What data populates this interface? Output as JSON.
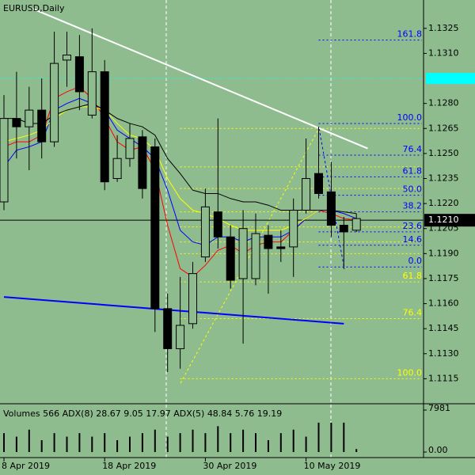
{
  "chart_data": {
    "type": "candlestick",
    "title": "EURUSD,Daily",
    "categories": [
      "8 Apr 2019",
      null,
      null,
      null,
      null,
      null,
      null,
      null,
      "18 Apr 2019",
      null,
      null,
      null,
      null,
      null,
      null,
      null,
      "30 Apr 2019",
      null,
      null,
      null,
      null,
      null,
      null,
      null,
      "10 May 2019",
      null,
      null,
      null,
      null
    ],
    "open": [
      1.1221,
      1.1271,
      1.1266,
      1.1276,
      1.1257,
      1.1306,
      1.1308,
      1.1273,
      1.1299,
      1.1235,
      1.1247,
      1.126,
      1.1254,
      1.1157,
      1.1133,
      1.1148,
      1.1188,
      1.1215,
      1.12,
      1.1175,
      1.1175,
      1.1201,
      1.1194,
      1.1194,
      1.1216,
      1.1238,
      1.1227,
      1.1207,
      1.1204
    ],
    "high": [
      1.1285,
      1.1299,
      1.129,
      1.1295,
      1.1323,
      1.1323,
      1.1321,
      1.1325,
      1.1306,
      1.1261,
      1.1268,
      1.1264,
      1.1259,
      1.1166,
      1.1176,
      1.1185,
      1.1229,
      1.1271,
      1.1207,
      1.1216,
      1.1214,
      1.1207,
      1.1204,
      1.1223,
      1.1259,
      1.1266,
      1.1245,
      1.1212,
      1.1214
    ],
    "low": [
      1.1216,
      1.1247,
      1.124,
      1.1247,
      1.1254,
      1.129,
      1.1276,
      1.1271,
      1.1228,
      1.1233,
      1.1242,
      1.1223,
      1.1143,
      1.1119,
      1.1121,
      1.1145,
      1.1185,
      1.1193,
      1.1169,
      1.1136,
      1.1171,
      1.1166,
      1.1185,
      1.1176,
      1.1214,
      1.1223,
      1.12,
      1.1181,
      1.1203
    ],
    "close": [
      1.1271,
      1.1266,
      1.1276,
      1.1257,
      1.1304,
      1.1309,
      1.1287,
      1.1299,
      1.1233,
      1.1247,
      1.1259,
      1.1229,
      1.1157,
      1.1133,
      1.1147,
      1.1178,
      1.1218,
      1.12,
      1.1174,
      1.1205,
      1.1202,
      1.1193,
      1.1193,
      1.1216,
      1.1235,
      1.1226,
      1.1207,
      1.1203,
      1.1211
    ],
    "series": [
      {
        "color": "#ff0000",
        "values": [
          1.1254,
          1.1257,
          1.1257,
          1.1261,
          1.1283,
          1.1287,
          1.129,
          1.1283,
          1.1271,
          1.1257,
          1.1252,
          1.1254,
          1.124,
          1.1207,
          1.1181,
          1.1176,
          1.1183,
          1.1192,
          1.1195,
          1.119,
          1.1195,
          1.1197,
          1.1197,
          1.1204,
          1.1211,
          1.1216,
          1.1214,
          1.1211,
          1.121
        ]
      },
      {
        "color": "#0000ff",
        "values": [
          1.1242,
          1.1252,
          1.1254,
          1.1257,
          1.1276,
          1.128,
          1.1283,
          1.128,
          1.1276,
          1.1264,
          1.1259,
          1.1254,
          1.1247,
          1.1228,
          1.1204,
          1.1197,
          1.1195,
          1.12,
          1.12,
          1.1197,
          1.12,
          1.12,
          1.12,
          1.1204,
          1.1211,
          1.1216,
          1.1216,
          1.1214,
          1.1211
        ]
      },
      {
        "color": "#ffff00",
        "values": [
          1.1257,
          1.1259,
          1.1261,
          1.1264,
          1.1271,
          1.1276,
          1.1278,
          1.1278,
          1.1276,
          1.1268,
          1.1261,
          1.1259,
          1.1252,
          1.1235,
          1.1223,
          1.1216,
          1.1214,
          1.1211,
          1.1207,
          1.1204,
          1.1204,
          1.1204,
          1.1204,
          1.1207,
          1.1211,
          1.1216,
          1.1216,
          1.1215,
          1.1214
        ]
      },
      {
        "color": "#000000",
        "values": [
          1.1271,
          1.1271,
          1.1268,
          1.1268,
          1.1273,
          1.1276,
          1.1278,
          1.128,
          1.1276,
          1.1271,
          1.1268,
          1.1266,
          1.1261,
          1.1247,
          1.1238,
          1.1228,
          1.1226,
          1.1226,
          1.1223,
          1.1221,
          1.1221,
          1.1219,
          1.1216,
          1.1216,
          1.1216,
          1.1216,
          1.1216,
          1.1215,
          1.1214
        ]
      }
    ],
    "ylim": [
      1.11,
      1.1342
    ],
    "yticks": [
      1.1325,
      {
        "value": 1.131,
        "label": "1.1310"
      },
      {
        "value": 1.128,
        "label": "1.1280"
      },
      1.1265,
      {
        "value": 1.125,
        "label": "1.1250"
      },
      1.1235,
      {
        "value": 1.122,
        "label": "1.1220"
      },
      1.1205,
      {
        "value": 1.119,
        "label": "1.1190"
      },
      1.1175,
      {
        "value": 1.116,
        "label": "1.1160"
      },
      1.1145,
      {
        "value": 1.113,
        "label": "1.1130"
      },
      1.1115
    ],
    "current_price": {
      "value": 1.121,
      "label": "1.1210"
    },
    "alert_level": 1.1295,
    "trendlines": [
      {
        "color": "#ffffff",
        "x": [
          2.2,
          28.9
        ],
        "y": [
          1.1337,
          1.1253
        ]
      },
      {
        "color": "#0000ff",
        "x": [
          0,
          27
        ],
        "y": [
          1.1164,
          1.1148
        ]
      }
    ],
    "fib_right": {
      "color": "#0000ff",
      "start": 25,
      "levels": [
        {
          "label": "161.8",
          "price": 1.1318
        },
        {
          "label": "100.0",
          "price": 1.1268
        },
        {
          "label": "76.4",
          "price": 1.1249
        },
        {
          "label": "61.8",
          "price": 1.1236
        },
        {
          "label": "50.0",
          "price": 1.1225
        },
        {
          "label": "38.2",
          "price": 1.1215
        },
        {
          "label": "23.6",
          "price": 1.1203
        },
        {
          "label": "14.6",
          "price": 1.1195
        },
        {
          "label": "0.0",
          "price": 1.1182
        }
      ]
    },
    "fib_left": {
      "color": "#ffff00",
      "start": 14,
      "levels": [
        {
          "label": null,
          "price": 1.1265
        },
        {
          "label": null,
          "price": 1.1242
        },
        {
          "label": null,
          "price": 1.1229
        },
        {
          "label": null,
          "price": 1.1215
        },
        {
          "label": null,
          "price": 1.1206
        },
        {
          "label": null,
          "price": 1.1197
        },
        {
          "label": null,
          "price": 1.119
        },
        {
          "label": "61.8",
          "price": 1.1173
        },
        {
          "label": "76.4",
          "price": 1.1151
        },
        {
          "label": "100.0",
          "price": 1.1115
        }
      ]
    },
    "indicator_text": "Volumes 566 ADX(8) 28.67 9.05 17.97 ADX(5) 48.84 5.76 19.19",
    "volumes": [
      3592,
      2926,
      4256,
      2261,
      3592,
      2926,
      3592,
      2926,
      3592,
      2261,
      2926,
      3592,
      4256,
      2926,
      3592,
      4256,
      3592,
      4922,
      3592,
      4256,
      3592,
      2261,
      3592,
      4256,
      2926,
      5587,
      5587,
      5587,
      566
    ],
    "vlim": [
      0,
      7981
    ],
    "vticks": [
      7981,
      {
        "value": 0,
        "label": "0.00"
      }
    ]
  }
}
